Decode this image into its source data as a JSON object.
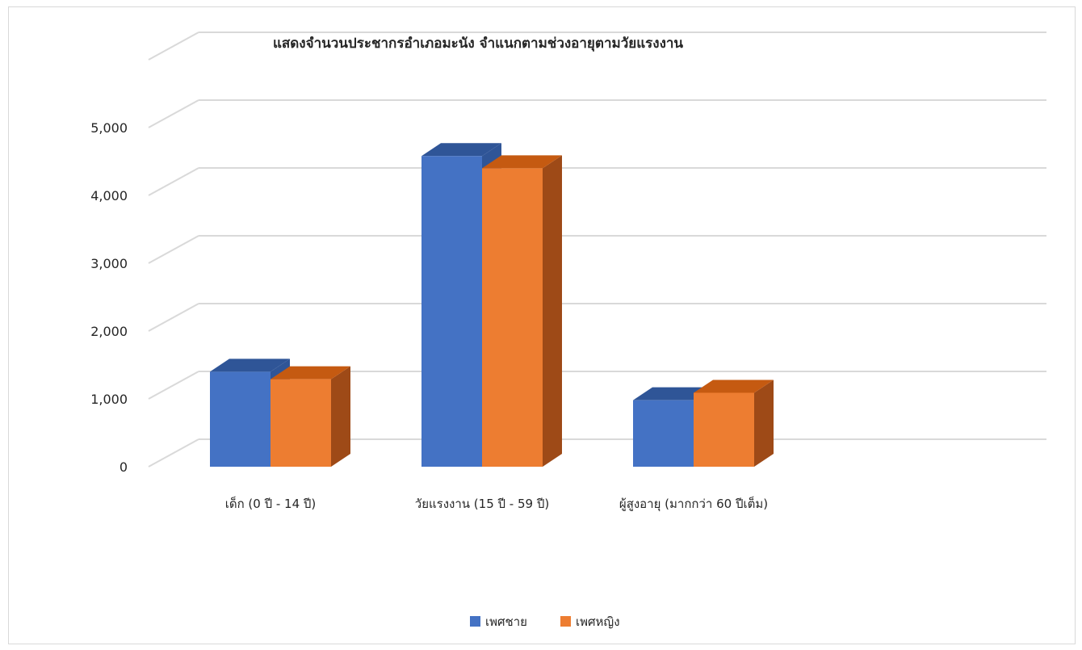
{
  "chart_data": {
    "type": "bar",
    "title": "แสดงจำนวนประชากรอำเภอมะนัง จำแนกตามช่วงอายุตามวัยแรงงาน",
    "categories": [
      "เด็ก (0 ปี - 14 ปี)",
      "วัยแรงงาน (15 ปี - 59 ปี)",
      "ผู้สูงอายุ (มากกว่า 60 ปีเต็ม)"
    ],
    "series": [
      {
        "name": "เพศชาย",
        "values": [
          1400,
          4580,
          980
        ],
        "color": "#4472c4",
        "top_color": "#2f5597",
        "side_color": "#2f5597"
      },
      {
        "name": "เพศหญิง",
        "values": [
          1290,
          4400,
          1090
        ],
        "color": "#ed7d31",
        "top_color": "#c55a11",
        "side_color": "#9e4a17"
      }
    ],
    "y_ticks": [
      "0",
      "1,000",
      "2,000",
      "3,000",
      "4,000",
      "5,000"
    ],
    "ylim": [
      0,
      5000
    ],
    "grid": true,
    "legend_position": "bottom",
    "three_d": true
  }
}
